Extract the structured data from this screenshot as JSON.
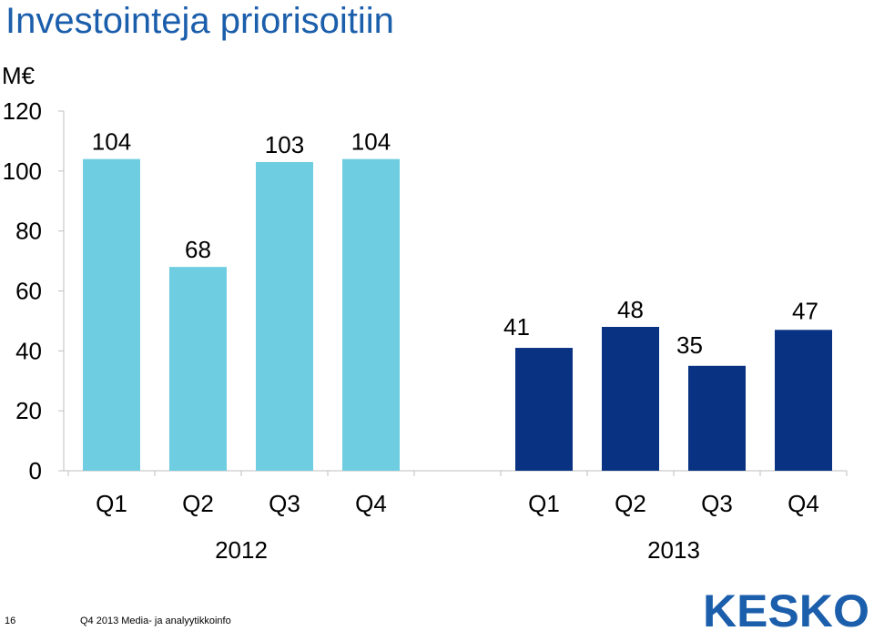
{
  "title": "Investointeja priorisoitiin",
  "colors": {
    "title": "#1b5eab",
    "series_2012": "#6fcde2",
    "series_2013": "#0a3283",
    "logo": "#1b5eab",
    "axis": "#bfbfbf"
  },
  "chart_data": {
    "type": "bar",
    "ylabel": "M€",
    "ylim": [
      0,
      120
    ],
    "yticks": [
      0,
      20,
      40,
      60,
      80,
      100,
      120
    ],
    "grid": false,
    "groups": [
      {
        "name": "2012",
        "categories": [
          "Q1",
          "Q2",
          "Q3",
          "Q4"
        ],
        "values": [
          104,
          68,
          103,
          104
        ],
        "color": "#6fcde2"
      },
      {
        "name": "2013",
        "categories": [
          "Q1",
          "Q2",
          "Q3",
          "Q4"
        ],
        "values": [
          41,
          48,
          35,
          47
        ],
        "color": "#0a3283"
      }
    ]
  },
  "footer": {
    "page": "16",
    "text": "Q4 2013   Media- ja analyytikkoinfo"
  },
  "logo": {
    "text": "KESKO"
  }
}
